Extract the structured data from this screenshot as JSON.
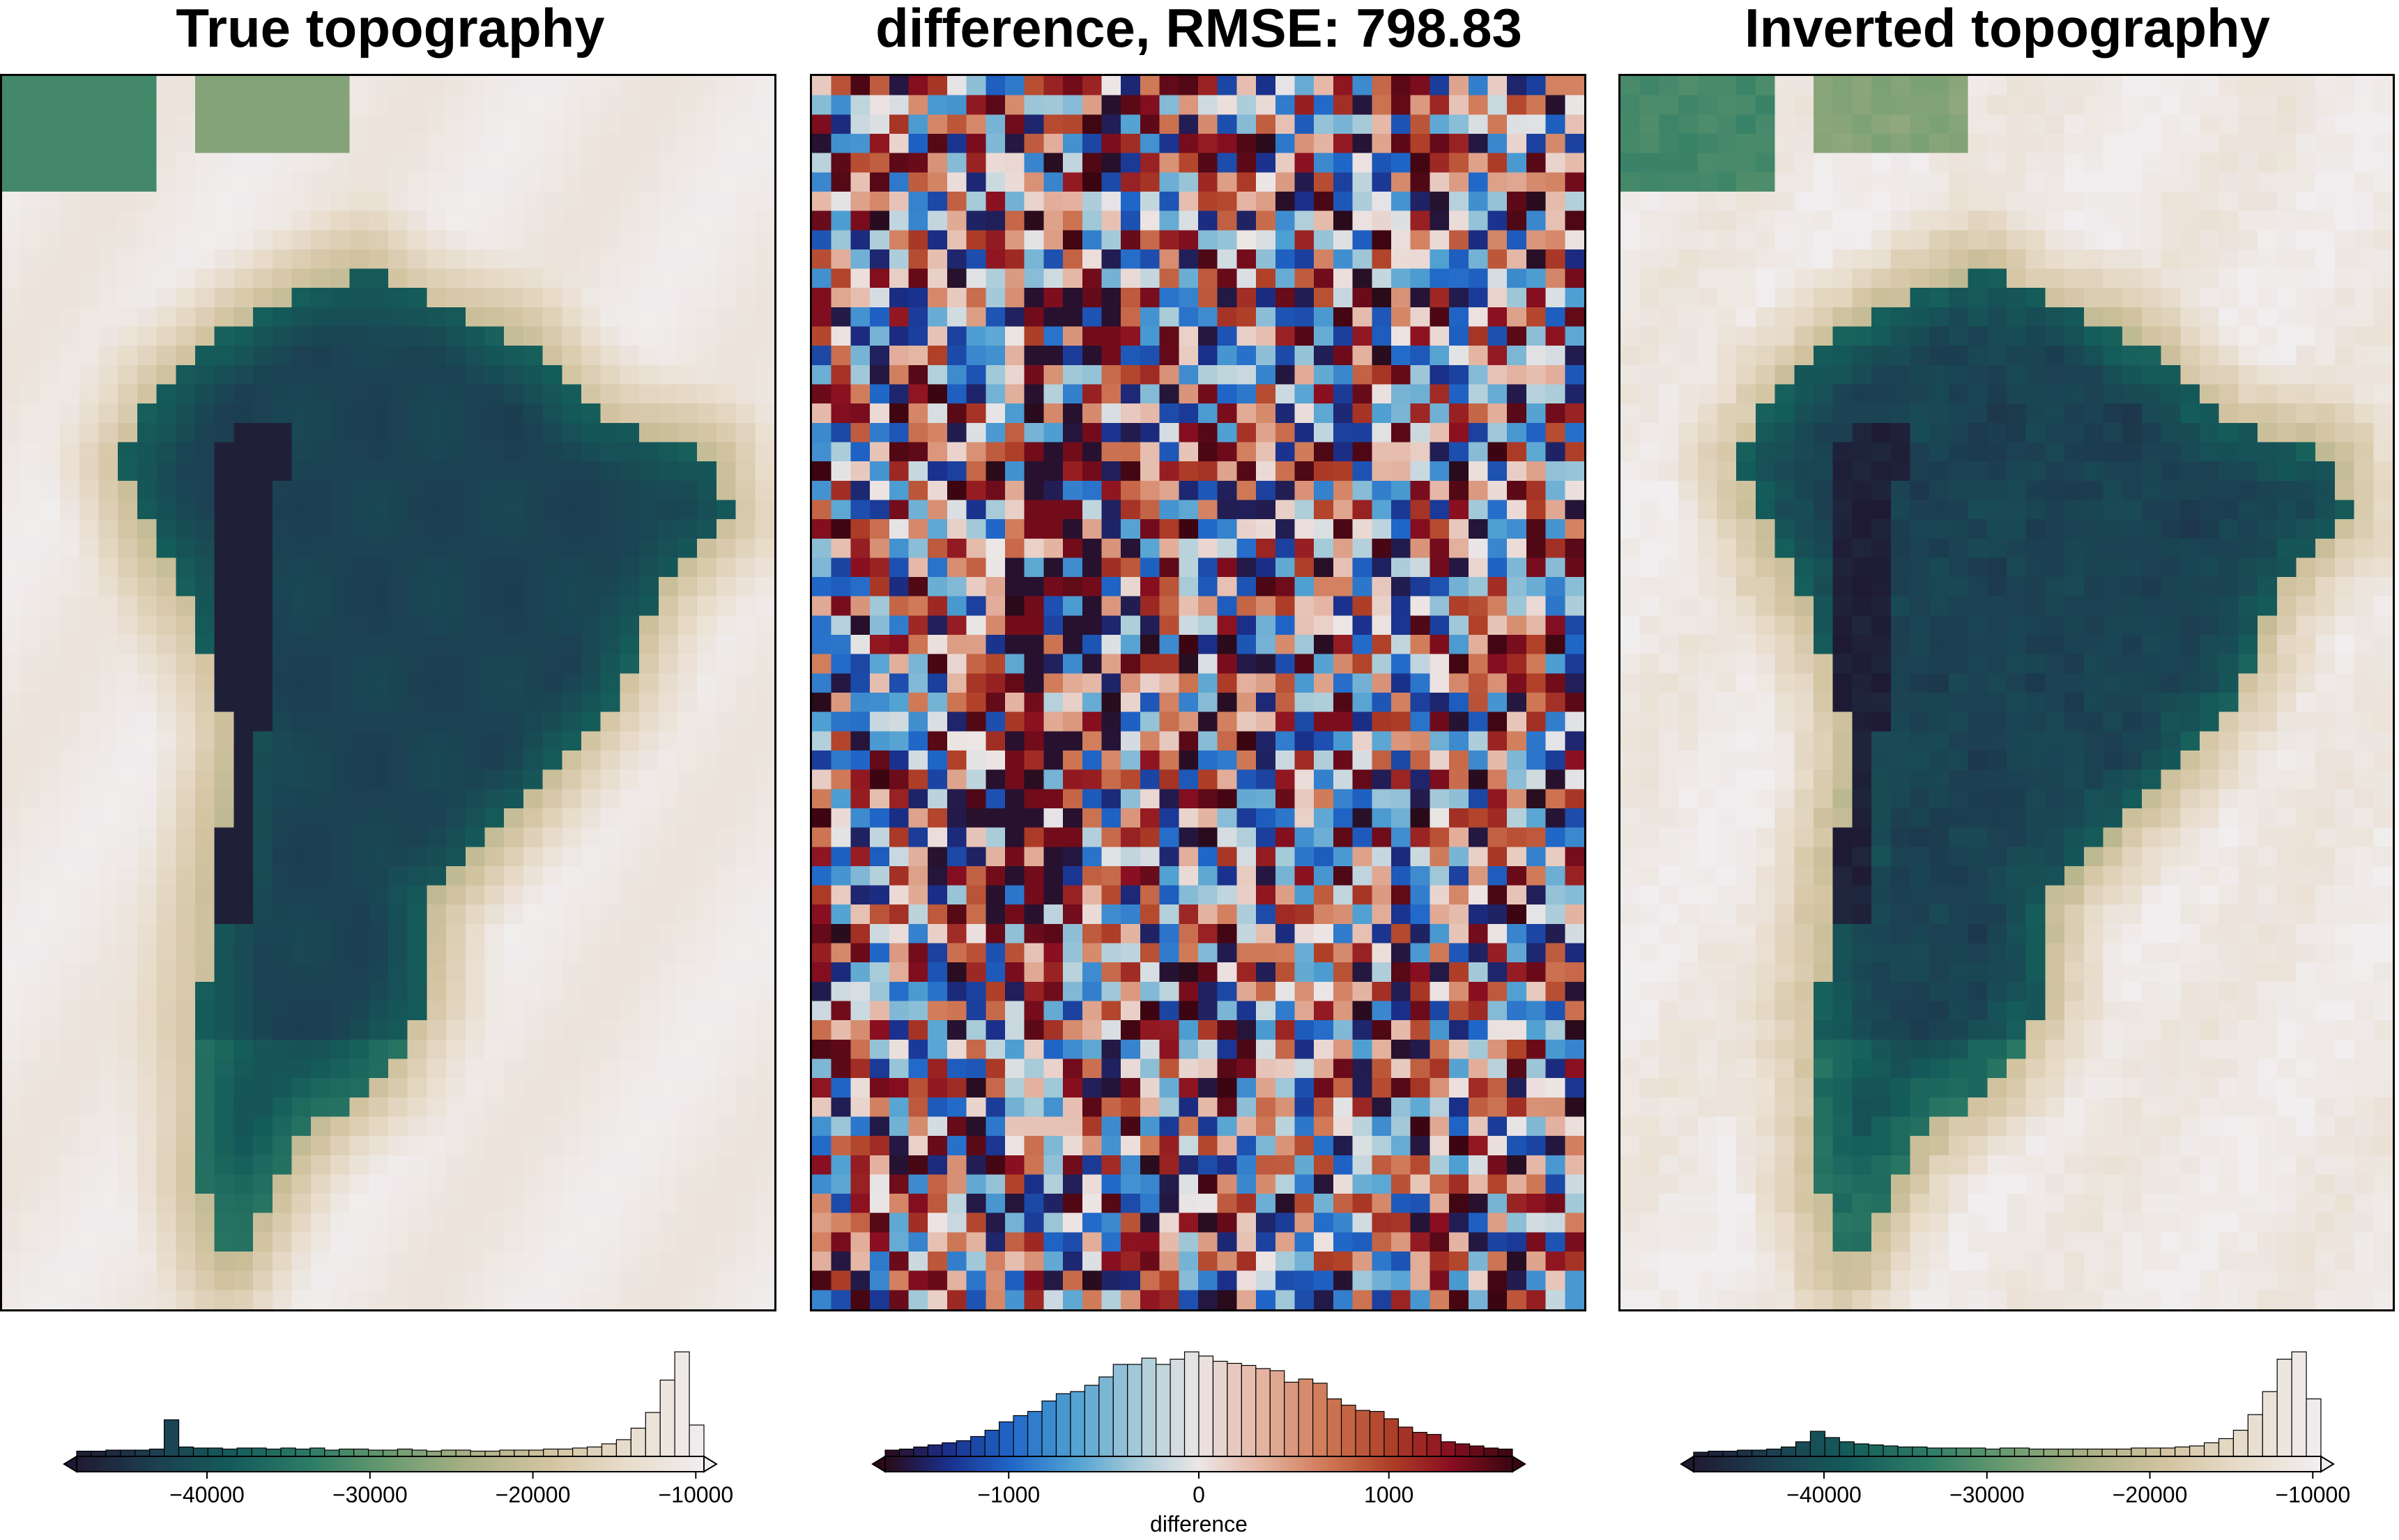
{
  "figure": {
    "panels": [
      {
        "key": "true",
        "title": "True topography"
      },
      {
        "key": "diff",
        "title": "difference, RMSE: 798.83"
      },
      {
        "key": "inv",
        "title": "Inverted topography"
      }
    ]
  },
  "colors": {
    "topo_cmap": [
      "#1f1a33",
      "#1c3f52",
      "#145c5a",
      "#2e7d66",
      "#6b9b70",
      "#a9b084",
      "#d2c3a0",
      "#e8dccb",
      "#f1eef0"
    ],
    "diff_cmap": [
      "#2a0a18",
      "#1a2f8a",
      "#1f66c8",
      "#4fa0d2",
      "#a5cad8",
      "#ece6e6",
      "#e4b4a2",
      "#d07a58",
      "#b04128",
      "#8a0f20",
      "#3a0511"
    ]
  },
  "chart_data": [
    {
      "type": "heatmap",
      "title": "True topography",
      "grid_cols": 40,
      "grid_rows": 64,
      "value_range": [
        -48000,
        -9500
      ],
      "description_note": "",
      "colorbar": {
        "range": [
          -48000,
          -9500
        ],
        "ticks": [
          -40000,
          -30000,
          -20000,
          -10000
        ],
        "tick_labels": [
          "−40000",
          "−30000",
          "−20000",
          "−10000"
        ],
        "extend": "both",
        "histogram": [
          0.05,
          0.05,
          0.06,
          0.06,
          0.06,
          0.07,
          0.35,
          0.09,
          0.08,
          0.08,
          0.07,
          0.08,
          0.08,
          0.07,
          0.08,
          0.07,
          0.08,
          0.06,
          0.07,
          0.07,
          0.06,
          0.06,
          0.07,
          0.06,
          0.05,
          0.06,
          0.06,
          0.05,
          0.05,
          0.06,
          0.06,
          0.06,
          0.07,
          0.07,
          0.08,
          0.09,
          0.12,
          0.16,
          0.27,
          0.42,
          0.73,
          1.0,
          0.3
        ]
      }
    },
    {
      "type": "heatmap",
      "title": "difference, RMSE: 798.83",
      "grid_cols": 40,
      "grid_rows": 64,
      "value_range": [
        -1650,
        1650
      ],
      "rmse": 798.83,
      "colorbar": {
        "range": [
          -1650,
          1650
        ],
        "ticks": [
          -1000,
          0,
          1000
        ],
        "tick_labels": [
          "−1000",
          "0",
          "1000"
        ],
        "label": "difference",
        "extend": "both",
        "histogram": [
          0.06,
          0.07,
          0.09,
          0.11,
          0.13,
          0.15,
          0.19,
          0.25,
          0.33,
          0.39,
          0.43,
          0.53,
          0.6,
          0.62,
          0.68,
          0.76,
          0.88,
          0.88,
          0.94,
          0.88,
          0.93,
          1.0,
          0.96,
          0.91,
          0.89,
          0.87,
          0.84,
          0.82,
          0.71,
          0.74,
          0.7,
          0.55,
          0.49,
          0.44,
          0.43,
          0.36,
          0.28,
          0.23,
          0.21,
          0.14,
          0.12,
          0.1,
          0.08,
          0.07
        ]
      }
    },
    {
      "type": "heatmap",
      "title": "Inverted topography",
      "grid_cols": 40,
      "grid_rows": 64,
      "value_range": [
        -48000,
        -9500
      ],
      "colorbar": {
        "range": [
          -48000,
          -9500
        ],
        "ticks": [
          -40000,
          -30000,
          -20000,
          -10000
        ],
        "tick_labels": [
          "−40000",
          "−30000",
          "−20000",
          "−10000"
        ],
        "extend": "both",
        "histogram": [
          0.04,
          0.05,
          0.05,
          0.06,
          0.06,
          0.07,
          0.09,
          0.14,
          0.24,
          0.18,
          0.14,
          0.12,
          0.11,
          0.1,
          0.09,
          0.09,
          0.08,
          0.08,
          0.08,
          0.08,
          0.07,
          0.08,
          0.08,
          0.07,
          0.07,
          0.07,
          0.07,
          0.07,
          0.07,
          0.07,
          0.08,
          0.08,
          0.08,
          0.09,
          0.1,
          0.13,
          0.17,
          0.25,
          0.4,
          0.62,
          0.93,
          1.0,
          0.55
        ]
      }
    }
  ]
}
